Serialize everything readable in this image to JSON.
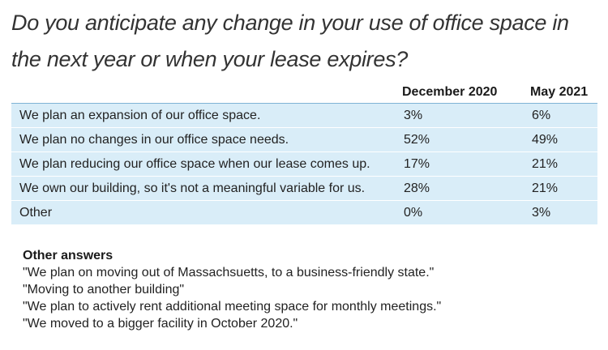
{
  "title": "Do you anticipate any change in your use of office space in the next year or when your lease expires?",
  "table": {
    "columns": [
      "December 2020",
      "May 2021"
    ],
    "rows": [
      {
        "label": "We plan an expansion of our office space.",
        "dec2020": "3%",
        "may2021": "6%"
      },
      {
        "label": "We plan no changes in our office space needs.",
        "dec2020": "52%",
        "may2021": "49%"
      },
      {
        "label": "We plan reducing our office space when our lease comes up.",
        "dec2020": "17%",
        "may2021": "21%"
      },
      {
        "label": "We own our building, so it's not a meaningful variable for us.",
        "dec2020": "28%",
        "may2021": "21%"
      },
      {
        "label": "Other",
        "dec2020": "0%",
        "may2021": "3%"
      }
    ]
  },
  "other_answers": {
    "heading": "Other answers",
    "items": [
      "\"We plan on moving out of Massachsuetts, to a business-friendly state.\"",
      "\"Moving to another building\"",
      "\"We plan to actively rent additional meeting space for monthly meetings.\"",
      "\"We moved to a bigger facility in October 2020.\""
    ]
  },
  "colors": {
    "row_background": "#d9edf8",
    "row_divider": "#ffffff",
    "title_text": "#333333"
  }
}
